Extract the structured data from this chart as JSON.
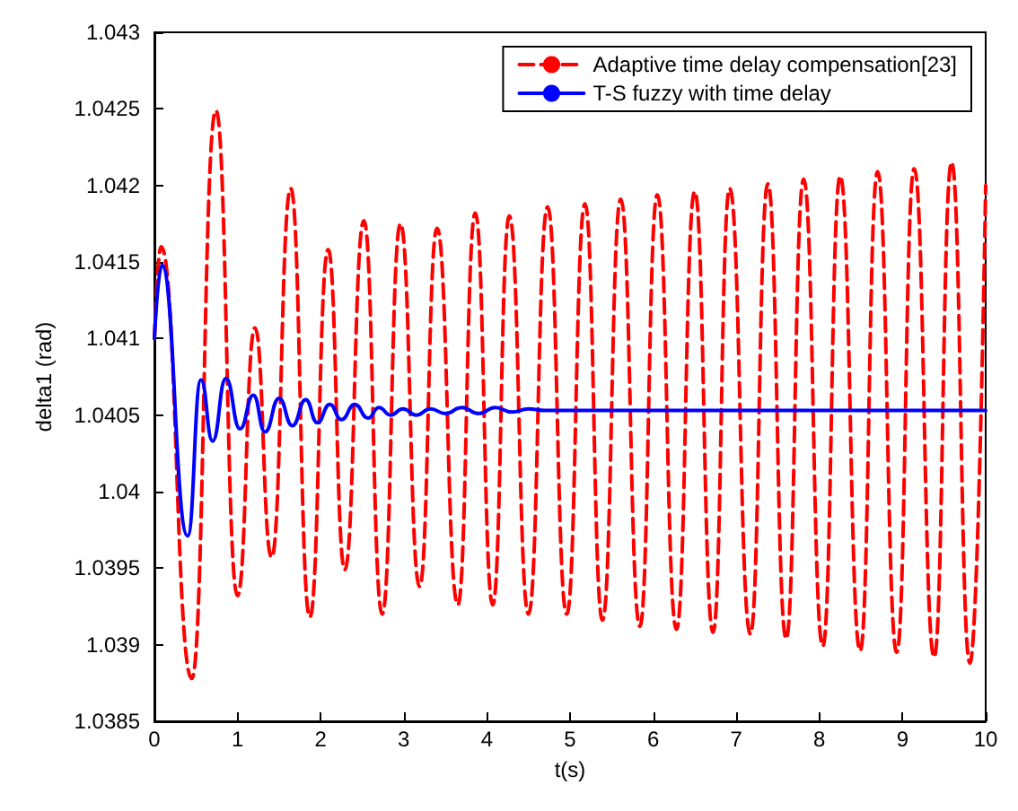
{
  "chart_data": {
    "type": "line",
    "xlabel": "t(s)",
    "ylabel": "delta1 (rad)",
    "xlim": [
      0,
      10
    ],
    "xticks": [
      0,
      1,
      2,
      3,
      4,
      5,
      6,
      7,
      8,
      9,
      10
    ],
    "ylim": [
      1.0385,
      1.043
    ],
    "yticks": [
      1.0385,
      1.039,
      1.0395,
      1.04,
      1.0405,
      1.041,
      1.0415,
      1.042,
      1.0425,
      1.043
    ],
    "grid": false,
    "legend": "top right",
    "marker": "none",
    "series": [
      {
        "name": "Adaptive time delay compensation[23]",
        "color": "#ff0000",
        "line_style": "dashed",
        "x": [
          0,
          0.08,
          0.45,
          0.74,
          1.0,
          1.21,
          1.41,
          1.64,
          1.87,
          2.09,
          2.29,
          2.52,
          2.74,
          2.96,
          3.19,
          3.4,
          3.65,
          3.86,
          4.07,
          4.27,
          4.5,
          4.73,
          4.96,
          5.18,
          5.39,
          5.61,
          5.84,
          6.05,
          6.28,
          6.5,
          6.72,
          6.92,
          7.17,
          7.38,
          7.6,
          7.81,
          8.04,
          8.25,
          8.49,
          8.7,
          8.93,
          9.14,
          9.38,
          9.59,
          9.81,
          10
        ],
        "values": [
          1.041,
          1.0416,
          1.03878,
          1.04249,
          1.03932,
          1.04107,
          1.03957,
          1.04198,
          1.03918,
          1.04158,
          1.03949,
          1.04177,
          1.0392,
          1.04175,
          1.03938,
          1.04172,
          1.03926,
          1.04182,
          1.03926,
          1.0418,
          1.0392,
          1.04186,
          1.0392,
          1.04188,
          1.03916,
          1.04191,
          1.03912,
          1.04194,
          1.0391,
          1.04196,
          1.03908,
          1.04198,
          1.03907,
          1.04201,
          1.03904,
          1.04204,
          1.03899,
          1.04206,
          1.03896,
          1.04209,
          1.03895,
          1.04211,
          1.03892,
          1.04215,
          1.03888,
          1.042
        ]
      },
      {
        "name": "T-S fuzzy with time delay",
        "color": "#0000ff",
        "line_style": "solid",
        "x": [
          0,
          0.09,
          0.4,
          0.56,
          0.7,
          0.86,
          1.03,
          1.19,
          1.33,
          1.5,
          1.66,
          1.82,
          1.96,
          2.11,
          2.25,
          2.41,
          2.57,
          2.7,
          2.84,
          2.99,
          3.15,
          3.32,
          3.5,
          3.7,
          3.9,
          4.1,
          4.3,
          4.5,
          4.7,
          10
        ],
        "values": [
          1.041,
          1.04148,
          1.03971,
          1.04073,
          1.04033,
          1.04074,
          1.04041,
          1.04063,
          1.04039,
          1.04061,
          1.04043,
          1.0406,
          1.04045,
          1.04057,
          1.04047,
          1.04057,
          1.04048,
          1.04055,
          1.0405,
          1.04054,
          1.0405,
          1.04054,
          1.04051,
          1.04055,
          1.04051,
          1.04055,
          1.04052,
          1.04054,
          1.04053,
          1.04053
        ]
      }
    ]
  }
}
